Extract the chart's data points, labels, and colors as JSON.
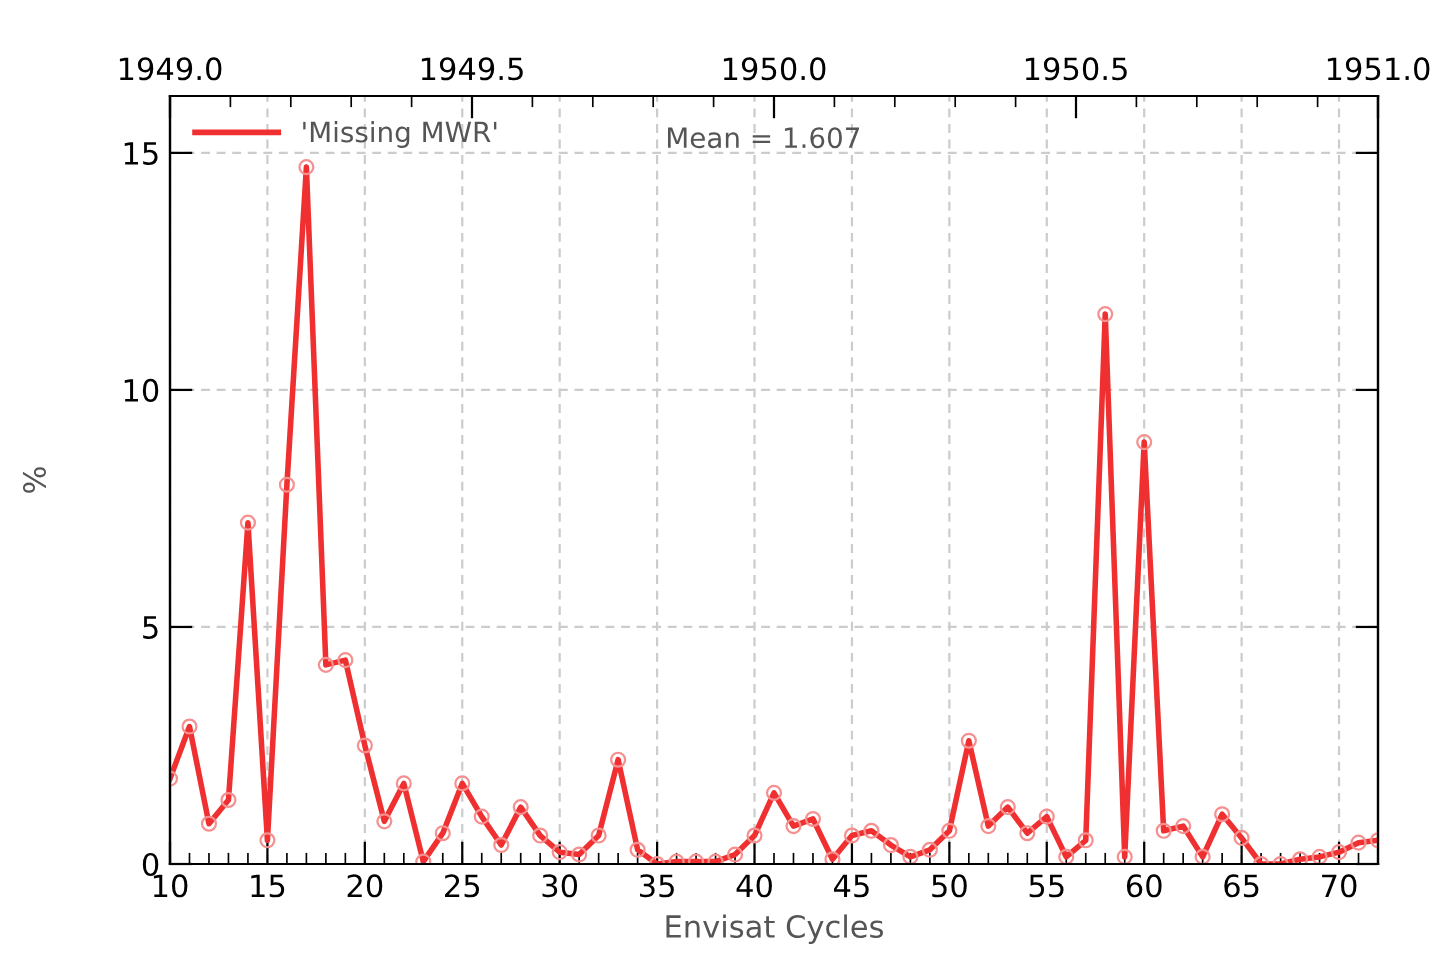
{
  "chart_data": {
    "type": "line",
    "xlabel": "Envisat Cycles",
    "ylabel": "%",
    "x2label": null,
    "x": [
      10,
      11,
      12,
      13,
      14,
      15,
      16,
      17,
      18,
      19,
      20,
      21,
      22,
      23,
      24,
      25,
      26,
      27,
      28,
      29,
      30,
      31,
      32,
      33,
      34,
      35,
      36,
      37,
      38,
      39,
      40,
      41,
      42,
      43,
      44,
      45,
      46,
      47,
      48,
      49,
      50,
      51,
      52,
      53,
      54,
      55,
      56,
      57,
      58,
      59,
      60,
      61,
      62,
      63,
      64,
      65,
      66,
      67,
      68,
      69,
      70,
      71,
      72
    ],
    "series": [
      {
        "name": "'Missing MWR'",
        "color": "#f03030",
        "values": [
          1.8,
          2.9,
          0.85,
          1.35,
          7.2,
          0.5,
          8.0,
          14.7,
          4.2,
          4.3,
          2.5,
          0.9,
          1.7,
          0.05,
          0.65,
          1.7,
          1.0,
          0.4,
          1.2,
          0.6,
          0.25,
          0.2,
          0.6,
          2.2,
          0.3,
          0.0,
          0.05,
          0.05,
          0.05,
          0.2,
          0.6,
          1.5,
          0.8,
          0.95,
          0.1,
          0.6,
          0.7,
          0.4,
          0.15,
          0.3,
          0.7,
          2.6,
          0.8,
          1.2,
          0.65,
          1.0,
          0.15,
          0.5,
          11.6,
          0.15,
          8.9,
          0.7,
          0.8,
          0.15,
          1.05,
          0.55,
          0.0,
          0.0,
          0.1,
          0.15,
          0.25,
          0.45,
          0.5
        ]
      }
    ],
    "annotations": [
      "Mean = 1.607"
    ],
    "xlim": [
      10,
      72
    ],
    "xticks": [
      10,
      15,
      20,
      25,
      30,
      35,
      40,
      45,
      50,
      55,
      60,
      65,
      70
    ],
    "ylim": [
      0,
      16.2
    ],
    "yticks": [
      0,
      5,
      10,
      15
    ],
    "x2lim": [
      1949.0,
      1951.0
    ],
    "x2ticks": [
      {
        "value": 1949.0,
        "label": "1949.0"
      },
      {
        "value": 1949.5,
        "label": "1949.5"
      },
      {
        "value": 1950.0,
        "label": "1950.0"
      },
      {
        "value": 1950.5,
        "label": "1950.5"
      },
      {
        "value": 1951.0,
        "label": "1951.0"
      }
    ],
    "grid": true,
    "legend": "top left",
    "marker": "circle",
    "line_style": "solid"
  }
}
